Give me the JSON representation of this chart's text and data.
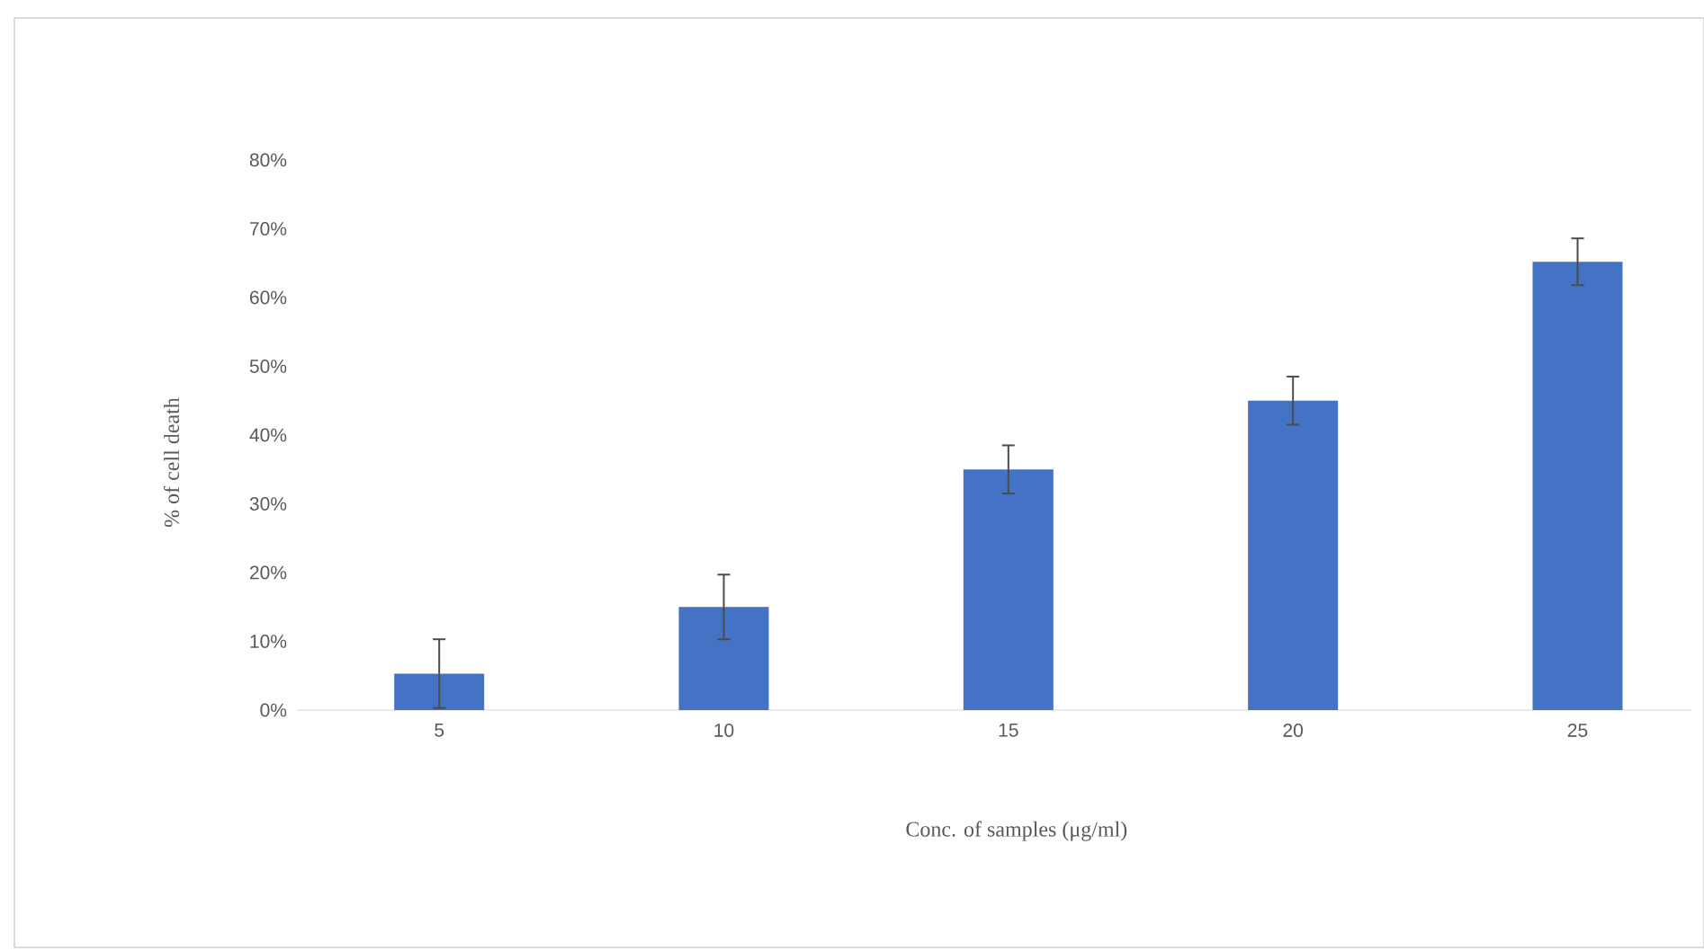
{
  "chart_data": {
    "type": "bar",
    "xlabel": "Conc. of samples (μg/ml)",
    "ylabel": "% of cell death",
    "categories": [
      "5",
      "10",
      "15",
      "20",
      "25"
    ],
    "values": [
      5.3,
      15,
      35,
      45,
      65.2
    ],
    "errors": [
      5,
      4.7,
      3.5,
      3.5,
      3.4
    ],
    "color": "#4472c4",
    "ylim": [
      0,
      80
    ],
    "yticks": [
      {
        "value": 0,
        "label": "0%"
      },
      {
        "value": 10,
        "label": "10%"
      },
      {
        "value": 20,
        "label": "20%"
      },
      {
        "value": 30,
        "label": "30%"
      },
      {
        "value": 40,
        "label": "40%"
      },
      {
        "value": 50,
        "label": "50%"
      },
      {
        "value": 60,
        "label": "60%"
      },
      {
        "value": 70,
        "label": "70%"
      },
      {
        "value": 80,
        "label": "80%"
      }
    ],
    "grid": false
  }
}
